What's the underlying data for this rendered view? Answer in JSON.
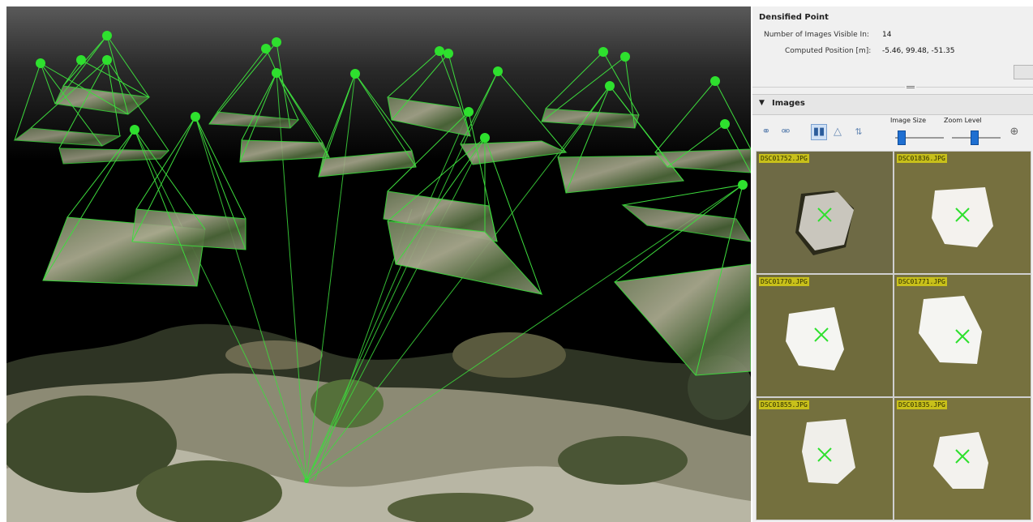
{
  "viewport": {
    "description_name": "3d-view"
  },
  "densified_point": {
    "title": "Densified Point",
    "images_visible_label": "Number of Images Visible In:",
    "images_visible_value": "14",
    "computed_position_label": "Computed Position [m]:",
    "computed_position_value": "-5.46, 99.48, -51.35"
  },
  "images_section": {
    "title": "Images",
    "image_size_label": "Image Size",
    "zoom_level_label": "Zoom Level",
    "image_size_level": 0.05,
    "zoom_level": 0.45
  },
  "thumbnails": [
    {
      "label": "DSC01752.JPG"
    },
    {
      "label": "DSC01836.JPG"
    },
    {
      "label": "DSC01770.JPG"
    },
    {
      "label": "DSC01771.JPG"
    },
    {
      "label": "DSC01855.JPG"
    },
    {
      "label": "DSC01835.JPG"
    }
  ],
  "colors": {
    "camera_green": "#3ddc3d",
    "marker_green": "#2ee02e",
    "label_yellow": "#c8c01a",
    "accent_blue": "#1f6fd1"
  },
  "icons": [
    "link-icon",
    "unlink-icon",
    "columns-icon",
    "triangle-icon",
    "sort-icon",
    "zoom-in-icon"
  ]
}
